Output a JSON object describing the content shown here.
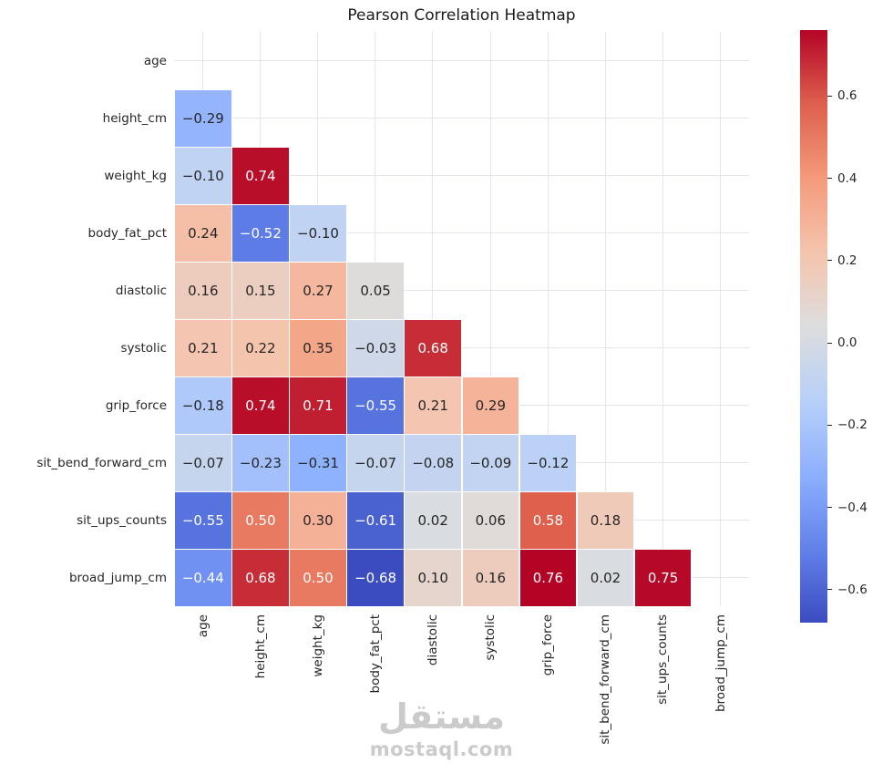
{
  "watermark": {
    "arabic": "مستقل",
    "latin": "mostaql.com"
  },
  "chart_data": {
    "type": "heatmap",
    "title": "Pearson Correlation Heatmap",
    "variables": [
      "age",
      "height_cm",
      "weight_kg",
      "body_fat_pct",
      "diastolic",
      "systolic",
      "grip_force",
      "sit_bend_forward_cm",
      "sit_ups_counts",
      "broad_jump_cm"
    ],
    "mask": "upper-triangle-including-diagonal",
    "matrix_layout": "lower-triangle rows; row i holds correlations of variables[i] with variables[0..i-1]",
    "matrix": [
      [],
      [
        -0.29
      ],
      [
        -0.1,
        0.74
      ],
      [
        0.24,
        -0.52,
        -0.1
      ],
      [
        0.16,
        0.15,
        0.27,
        0.05
      ],
      [
        0.21,
        0.22,
        0.35,
        -0.03,
        0.68
      ],
      [
        -0.18,
        0.74,
        0.71,
        -0.55,
        0.21,
        0.29
      ],
      [
        -0.07,
        -0.23,
        -0.31,
        -0.07,
        -0.08,
        -0.09,
        -0.12
      ],
      [
        -0.55,
        0.5,
        0.3,
        -0.61,
        0.02,
        0.06,
        0.58,
        0.18
      ],
      [
        -0.44,
        0.68,
        0.5,
        -0.68,
        0.1,
        0.16,
        0.76,
        0.02,
        0.75
      ]
    ],
    "annot_format": "2-decimals",
    "vmin": -0.68,
    "vmax": 0.76,
    "colorbar_ticks": [
      0.6,
      0.4,
      0.2,
      0.0,
      -0.2,
      -0.4,
      -0.6
    ],
    "colormap": {
      "name": "coolwarm",
      "anchors": [
        [
          59,
          76,
          192
        ],
        [
          98,
          130,
          234
        ],
        [
          141,
          176,
          254
        ],
        [
          184,
          208,
          249
        ],
        [
          221,
          221,
          221
        ],
        [
          245,
          196,
          173
        ],
        [
          244,
          154,
          123
        ],
        [
          222,
          96,
          77
        ],
        [
          180,
          4,
          38
        ]
      ]
    },
    "grid": true,
    "legend_position": "right-colorbar",
    "annotation_dark_text_color": "#262626",
    "annotation_light_text_color": "#ffffff"
  }
}
